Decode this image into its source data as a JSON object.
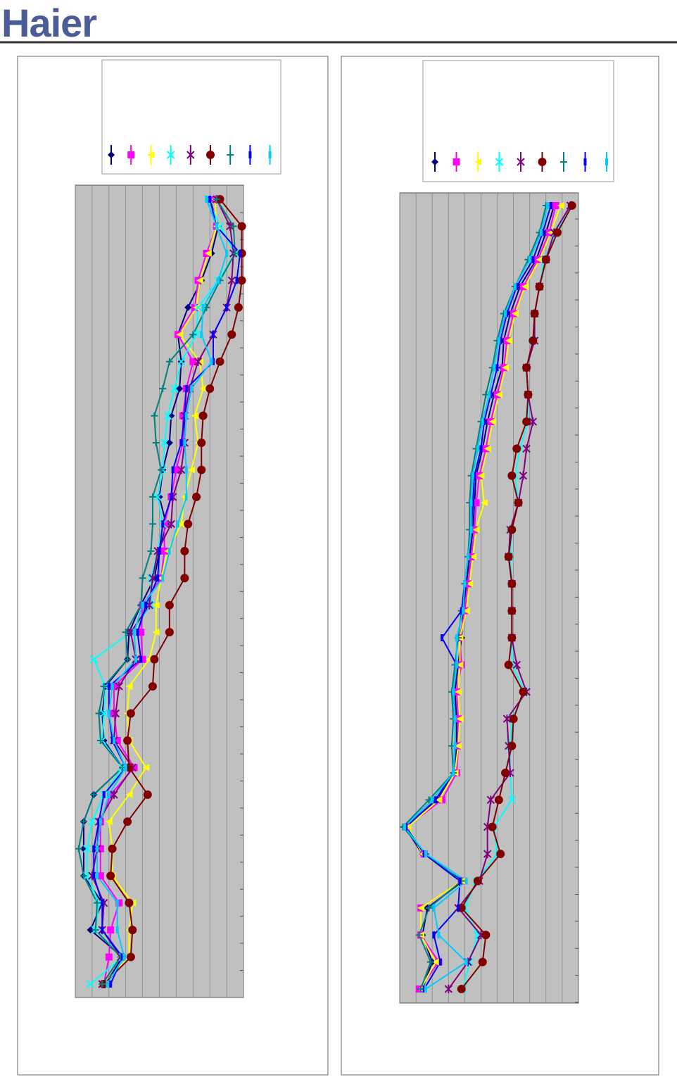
{
  "header": {
    "logo": "Haier"
  },
  "chart_data": [
    {
      "type": "line",
      "orientation": "vertical-profile",
      "grid": true,
      "categories": [
        null,
        null,
        null,
        null,
        null,
        null,
        null,
        null,
        null,
        null,
        null,
        null,
        null,
        null,
        null,
        null,
        null,
        null,
        null,
        null,
        null,
        null,
        null,
        null,
        null,
        null,
        null,
        null,
        null,
        null
      ],
      "xlim": [
        0,
        10
      ],
      "xticks": [
        0,
        1,
        2,
        3,
        4,
        5,
        6,
        7,
        8,
        9,
        10
      ],
      "series": [
        {
          "color": "#000080",
          "marker": "diamond",
          "values": [
            8.0,
            8.5,
            8.1,
            7.5,
            6.7,
            6.1,
            6.3,
            6.2,
            5.7,
            5.6,
            5.2,
            5.0,
            5.4,
            5.0,
            4.7,
            3.9,
            3.2,
            3.1,
            1.8,
            1.6,
            1.7,
            2.8,
            1.1,
            0.5,
            0.5,
            0.5,
            1.6,
            0.9,
            2.8,
            1.8
          ]
        },
        {
          "color": "#ff00ff",
          "marker": "square",
          "values": [
            8.3,
            8.4,
            7.8,
            7.3,
            7.1,
            6.1,
            7.0,
            6.6,
            6.4,
            6.4,
            6.0,
            5.7,
            5.3,
            5.3,
            5.1,
            4.0,
            3.9,
            4.0,
            2.3,
            2.3,
            2.5,
            3.5,
            2.1,
            1.5,
            1.5,
            1.5,
            2.6,
            2.1,
            2.0,
            1.7
          ]
        },
        {
          "color": "#ffff00",
          "marker": "triangle",
          "values": [
            8.3,
            8.4,
            7.9,
            7.4,
            7.2,
            6.2,
            7.4,
            7.6,
            7.1,
            7.3,
            6.9,
            6.5,
            6.3,
            5.5,
            5.1,
            4.8,
            4.8,
            4.4,
            3.2,
            3.1,
            3.2,
            4.2,
            3.2,
            2.0,
            2.2,
            2.2,
            3.4,
            3.2,
            3.2,
            1.7
          ]
        },
        {
          "color": "#00ffff",
          "marker": "x",
          "values": [
            7.9,
            8.6,
            9.5,
            8.5,
            7.3,
            7.2,
            6.3,
            5.9,
            5.5,
            5.3,
            5.2,
            4.9,
            5.2,
            4.9,
            4.5,
            4.5,
            3.3,
            1.1,
            1.8,
            1.7,
            1.6,
            2.8,
            1.7,
            1.0,
            0.7,
            0.7,
            1.4,
            1.2,
            2.8,
            0.9
          ]
        },
        {
          "color": "#800080",
          "marker": "star",
          "values": [
            8.4,
            9.2,
            9.4,
            9.3,
            9.0,
            8.2,
            7.3,
            6.8,
            6.5,
            6.5,
            6.3,
            5.8,
            5.7,
            4.9,
            4.6,
            4.4,
            3.3,
            3.6,
            2.6,
            2.4,
            2.3,
            3.4,
            2.3,
            1.4,
            1.3,
            1.0,
            1.7,
            1.6,
            2.7,
            1.6
          ]
        },
        {
          "color": "#800000",
          "marker": "circle",
          "values": [
            8.6,
            9.9,
            9.9,
            9.9,
            9.7,
            9.3,
            8.6,
            8.0,
            7.6,
            7.5,
            7.5,
            7.2,
            6.7,
            6.5,
            6.5,
            5.6,
            5.6,
            4.7,
            4.6,
            3.3,
            3.1,
            3.2,
            4.3,
            3.1,
            2.2,
            2.1,
            3.2,
            3.4,
            3.3,
            1.7
          ]
        },
        {
          "color": "#008080",
          "marker": "plus",
          "values": [
            8.4,
            9.4,
            9.5,
            8.6,
            7.8,
            7.0,
            5.6,
            5.2,
            4.7,
            4.8,
            5.1,
            4.6,
            4.6,
            4.5,
            4.0,
            3.9,
            3.0,
            3.1,
            1.7,
            1.4,
            1.5,
            2.8,
            1.1,
            0.5,
            0.2,
            0.5,
            1.3,
            1.2,
            2.7,
            1.6
          ]
        },
        {
          "color": "#0000ff",
          "marker": "bar",
          "values": [
            8.0,
            8.4,
            9.8,
            9.6,
            9.0,
            8.2,
            8.2,
            6.6,
            6.5,
            6.3,
            5.8,
            5.7,
            5.2,
            5.0,
            4.9,
            4.2,
            3.7,
            3.9,
            2.0,
            2.0,
            2.2,
            3.0,
            1.7,
            1.4,
            1.1,
            1.1,
            1.6,
            1.6,
            2.8,
            2.1
          ]
        },
        {
          "color": "#00ccff",
          "marker": "bar",
          "values": [
            7.8,
            8.4,
            9.0,
            8.5,
            7.6,
            7.5,
            8.1,
            6.9,
            6.6,
            6.5,
            6.6,
            6.6,
            6.1,
            5.6,
            5.2,
            4.0,
            3.5,
            3.6,
            2.2,
            2.0,
            2.3,
            3.0,
            2.0,
            1.5,
            1.3,
            1.3,
            2.5,
            2.5,
            2.9,
            1.9
          ]
        }
      ]
    },
    {
      "type": "line",
      "orientation": "vertical-profile",
      "grid": true,
      "categories": [
        null,
        null,
        null,
        null,
        null,
        null,
        null,
        null,
        null,
        null,
        null,
        null,
        null,
        null,
        null,
        null,
        null,
        null,
        null,
        null,
        null,
        null,
        null,
        null,
        null,
        null,
        null,
        null,
        null,
        null
      ],
      "xlim": [
        0,
        11
      ],
      "xticks": [
        0,
        1,
        2,
        3,
        4,
        5,
        6,
        7,
        8,
        9,
        10,
        11
      ],
      "series": [
        {
          "color": "#000080",
          "marker": "diamond",
          "values": [
            9.5,
            9.0,
            8.4,
            7.4,
            6.8,
            6.4,
            6.3,
            5.8,
            5.4,
            5.1,
            4.7,
            4.6,
            4.5,
            4.3,
            4.1,
            3.9,
            3.8,
            3.6,
            3.4,
            3.5,
            3.5,
            3.4,
            2.3,
            0.3,
            1.4,
            3.9,
            1.7,
            1.4,
            2.0,
            1.4
          ]
        },
        {
          "color": "#ff00ff",
          "marker": "square",
          "values": [
            9.6,
            9.2,
            8.5,
            7.6,
            7.0,
            6.6,
            6.4,
            6.0,
            5.6,
            5.3,
            4.9,
            4.7,
            4.6,
            4.4,
            4.2,
            4.0,
            3.7,
            3.8,
            3.5,
            3.6,
            3.6,
            3.5,
            2.6,
            0.4,
            1.5,
            3.8,
            1.3,
            1.3,
            2.4,
            1.2
          ]
        },
        {
          "color": "#ffff00",
          "marker": "triangle",
          "values": [
            9.9,
            9.3,
            8.6,
            7.7,
            7.1,
            6.7,
            6.5,
            6.1,
            5.7,
            5.4,
            5.0,
            5.2,
            4.7,
            4.5,
            4.3,
            4.1,
            3.7,
            3.7,
            3.6,
            3.7,
            3.6,
            3.4,
            2.4,
            0.5,
            1.4,
            3.8,
            1.3,
            1.3,
            2.2,
            1.3
          ]
        },
        {
          "color": "#00ffff",
          "marker": "x",
          "values": [
            10.5,
            9.6,
            8.9,
            8.6,
            8.3,
            8.2,
            7.8,
            7.9,
            7.9,
            7.4,
            7.1,
            7.3,
            6.9,
            6.8,
            6.9,
            6.9,
            6.9,
            6.9,
            7.7,
            6.9,
            6.8,
            6.8,
            6.9,
            5.8,
            6.0,
            4.7,
            4.0,
            4.8,
            4.3,
            3.9
          ]
        },
        {
          "color": "#800080",
          "marker": "star",
          "values": [
            10.5,
            9.5,
            9.0,
            8.6,
            8.3,
            8.3,
            7.8,
            7.9,
            8.2,
            7.8,
            7.6,
            7.3,
            6.8,
            6.7,
            6.9,
            6.9,
            6.9,
            7.2,
            7.8,
            6.6,
            6.7,
            6.8,
            5.6,
            5.4,
            5.4,
            4.9,
            3.6,
            5.0,
            4.2,
            3.0
          ]
        },
        {
          "color": "#800000",
          "marker": "circle",
          "values": [
            10.6,
            9.7,
            9.0,
            8.6,
            8.3,
            8.2,
            7.8,
            7.9,
            7.8,
            7.2,
            6.9,
            7.3,
            6.9,
            6.7,
            6.9,
            6.9,
            6.9,
            6.7,
            7.6,
            7.0,
            6.9,
            6.5,
            6.1,
            5.7,
            6.2,
            4.8,
            3.8,
            5.3,
            5.1,
            3.8
          ]
        },
        {
          "color": "#008080",
          "marker": "plus",
          "values": [
            9.0,
            8.6,
            7.9,
            7.1,
            6.4,
            6.0,
            5.7,
            5.3,
            5.0,
            4.7,
            4.4,
            4.3,
            4.3,
            4.2,
            4.0,
            3.8,
            3.6,
            3.4,
            3.2,
            3.3,
            3.2,
            3.3,
            1.8,
            0.2,
            1.6,
            3.8,
            1.8,
            1.2,
            1.9,
            1.3
          ]
        },
        {
          "color": "#0000ff",
          "marker": "bar",
          "values": [
            9.3,
            8.8,
            8.2,
            7.2,
            6.6,
            6.2,
            6.0,
            5.6,
            5.2,
            5.0,
            4.6,
            4.5,
            4.4,
            4.2,
            4.0,
            3.8,
            2.6,
            3.5,
            3.3,
            3.4,
            3.4,
            3.3,
            2.2,
            0.4,
            1.5,
            3.7,
            3.6,
            2.1,
            2.5,
            1.5
          ]
        },
        {
          "color": "#00ccff",
          "marker": "bar",
          "values": [
            9.1,
            8.7,
            8.0,
            7.1,
            6.5,
            6.1,
            5.8,
            5.5,
            5.1,
            4.8,
            4.5,
            4.4,
            4.4,
            4.2,
            4.0,
            3.9,
            3.5,
            3.5,
            3.3,
            3.4,
            3.4,
            3.3,
            2.0,
            0.3,
            1.6,
            4.1,
            2.1,
            2.4,
            4.1,
            1.6
          ]
        }
      ]
    }
  ]
}
